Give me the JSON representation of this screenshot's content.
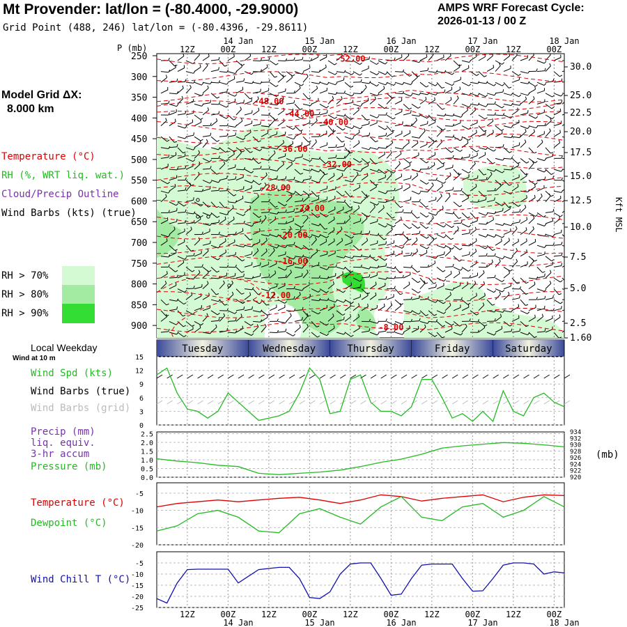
{
  "header": {
    "title": "Mt Provender:  lat/lon = (-80.4000, -29.9000)",
    "grid_point": "Grid Point (488, 246) lat/lon = (-80.4396, -29.8611)",
    "cycle_line1": "AMPS WRF Forecast Cycle:",
    "cycle_line2": "2026-01-13 / 00  Z"
  },
  "left_panel": {
    "model_grid_line1": "Model Grid ΔX:",
    "model_grid_line2": "8.000 km",
    "legend_temperature": "Temperature (°C)",
    "legend_rh": "RH (%, WRT liq. wat.)",
    "legend_cloud": "Cloud/Precip Outline",
    "legend_wind": "Wind Barbs (kts) (true)",
    "rh70": "RH > 70%",
    "rh80": "RH > 80%",
    "rh90": "RH > 90%",
    "local_weekday": "Local Weekday",
    "wind_at_10m": "Wind at 10 m",
    "wind_spd": "Wind Spd (kts)",
    "wind_barbs_true": "Wind Barbs (true)",
    "wind_barbs_grid": "Wind Barbs (grid)",
    "precip_line1": "Precip (mm)",
    "precip_line2": "liq. equiv.",
    "precip_line3": "3-hr accum",
    "pressure": "Pressure (mb)",
    "temperature": "Temperature (°C)",
    "dewpoint": "Dewpoint (°C)",
    "wind_chill": "Wind Chill T (°C)"
  },
  "colors": {
    "temperature": "#dd0000",
    "rh": "#22bb22",
    "cloud": "#7733aa",
    "windchill": "#1010b0",
    "rh70": "#d4fad4",
    "rh80": "#a3eaa3",
    "rh90": "#33dd33",
    "gray": "#bbbbbb"
  },
  "chart_data": [
    {
      "type": "contour",
      "name": "upper-air cross section",
      "pressure_label": "P (mb)",
      "pressure_ticks": [
        "250",
        "300",
        "350",
        "400",
        "450",
        "500",
        "550",
        "600",
        "650",
        "700",
        "750",
        "800",
        "850",
        "900"
      ],
      "height_label": "Kft MSL",
      "height_ticks": [
        "30.0",
        "25.0",
        "22.5",
        "20.0",
        "17.5",
        "15.0",
        "12.5",
        "10.0",
        "7.5",
        "5.0",
        "2.5",
        "1.60"
      ],
      "time_ticks_hour": [
        "12Z",
        "00Z",
        "12Z",
        "00Z",
        "12Z",
        "00Z",
        "12Z",
        "00Z",
        "12Z",
        "00Z"
      ],
      "time_ticks_date": [
        "14 Jan",
        "15 Jan",
        "16 Jan",
        "17 Jan",
        "18 Jan"
      ],
      "temperature_contour_labels": [
        {
          "value": "-52.00",
          "t": 57,
          "p": 258
        },
        {
          "value": "-48.00",
          "t": 33,
          "p": 360
        },
        {
          "value": "-44.00",
          "t": 42,
          "p": 390
        },
        {
          "value": "-40.00",
          "t": 52,
          "p": 410
        },
        {
          "value": "-36.00",
          "t": 40,
          "p": 475
        },
        {
          "value": "-32.00",
          "t": 53,
          "p": 512
        },
        {
          "value": "-28.00",
          "t": 35,
          "p": 568
        },
        {
          "value": "-24.00",
          "t": 45,
          "p": 618
        },
        {
          "value": "-20.00",
          "t": 40,
          "p": 682
        },
        {
          "value": "-16.00",
          "t": 40,
          "p": 745
        },
        {
          "value": "-12.00",
          "t": 35,
          "p": 828
        },
        {
          "value": "-8.00",
          "t": 69,
          "p": 905
        }
      ]
    },
    {
      "type": "line",
      "name": "wind speed",
      "y_ticks": [
        "15",
        "12",
        "9",
        "6",
        "3",
        "0"
      ],
      "ylim": [
        0,
        15
      ],
      "x_hours": [
        0,
        3,
        6,
        9,
        12,
        15,
        18,
        21,
        24,
        27,
        30,
        33,
        36,
        39,
        42,
        45,
        48,
        51,
        54,
        57,
        60,
        63,
        66,
        69,
        72,
        75,
        78,
        81,
        84,
        87,
        90,
        93,
        96,
        99,
        102,
        105,
        108,
        111,
        114,
        117,
        120
      ],
      "values": [
        11,
        12.5,
        7,
        3.5,
        3,
        1.5,
        3,
        7,
        5,
        3,
        1,
        1.5,
        2,
        3,
        7,
        12.5,
        10,
        2.5,
        3,
        10,
        11,
        5,
        3,
        3,
        2,
        4,
        10,
        10,
        6,
        1.5,
        2.5,
        0.8,
        3,
        0.8,
        7.5,
        3,
        2,
        6,
        7,
        5,
        4
      ]
    },
    {
      "type": "line",
      "name": "precip and pressure",
      "precip_ticks": [
        "2.5",
        "2.0",
        "1.5",
        "1.0",
        "0.5",
        "0.0"
      ],
      "pressure_ticks": [
        "934",
        "932",
        "930",
        "928",
        "926",
        "924",
        "922",
        "920"
      ],
      "pressure_unit": "(mb)",
      "pressure_range": [
        920,
        934
      ],
      "x_hours": [
        0,
        6,
        12,
        18,
        24,
        30,
        36,
        42,
        48,
        54,
        60,
        66,
        72,
        78,
        84,
        90,
        96,
        102,
        108,
        114,
        120
      ],
      "pressure": [
        925.7,
        925.0,
        924.5,
        923.7,
        923.3,
        921.2,
        920.8,
        921.2,
        921.6,
        922.2,
        923.3,
        924.6,
        925.6,
        927.1,
        929.0,
        929.7,
        930.2,
        930.7,
        930.5,
        930.0,
        929.4
      ],
      "precip": [
        0,
        0,
        0,
        0,
        0,
        0,
        0,
        0,
        0,
        0,
        0,
        0,
        0,
        0,
        0,
        0,
        0,
        0,
        0,
        0,
        0
      ]
    },
    {
      "type": "line",
      "name": "temperature and dewpoint",
      "y_ticks": [
        "-5",
        "-10",
        "-15",
        "-20"
      ],
      "ylim": [
        -20,
        -2
      ],
      "x_hours": [
        0,
        6,
        12,
        18,
        24,
        30,
        36,
        42,
        48,
        54,
        60,
        66,
        72,
        78,
        84,
        90,
        96,
        102,
        108,
        114,
        120
      ],
      "temperature": [
        -9,
        -8,
        -7.5,
        -7,
        -7.5,
        -7,
        -6.5,
        -6.2,
        -7,
        -8,
        -7,
        -5.5,
        -6,
        -7.3,
        -6.5,
        -6,
        -5.5,
        -7.5,
        -6.2,
        -5.5,
        -5.7
      ],
      "dewpoint": [
        -16,
        -14.5,
        -11,
        -10,
        -12,
        -16,
        -16.5,
        -11,
        -9.5,
        -12,
        -14,
        -9,
        -6,
        -12,
        -13,
        -9,
        -8,
        -12,
        -10,
        -6,
        -9
      ]
    },
    {
      "type": "line",
      "name": "wind chill",
      "y_ticks": [
        "-5",
        "-10",
        "-15",
        "-20",
        "-25"
      ],
      "ylim": [
        -25,
        0
      ],
      "x_hours": [
        0,
        3,
        6,
        9,
        12,
        15,
        18,
        21,
        24,
        27,
        30,
        33,
        36,
        39,
        42,
        45,
        48,
        51,
        54,
        57,
        60,
        63,
        66,
        69,
        72,
        75,
        78,
        81,
        84,
        87,
        90,
        93,
        96,
        99,
        102,
        105,
        108,
        111,
        114,
        117,
        120
      ],
      "values": [
        -21,
        -23,
        -14,
        -8,
        -7.8,
        -7.8,
        -7.8,
        -7.8,
        -14,
        -11,
        -8,
        -7.5,
        -7,
        -7,
        -12,
        -20.5,
        -21,
        -18,
        -10,
        -5.5,
        -5,
        -5,
        -12,
        -19.5,
        -19,
        -12,
        -6,
        -5.5,
        -5.5,
        -5.5,
        -12,
        -17.7,
        -17.5,
        -12,
        -6,
        -5,
        -5,
        -5.5,
        -10,
        -9,
        -9.5
      ]
    }
  ],
  "weekday_bar": [
    "Tuesday",
    "Wednesday",
    "Thursday",
    "Friday",
    "Saturday"
  ],
  "bottom_axis": {
    "hours": [
      "12Z",
      "00Z",
      "12Z",
      "00Z",
      "12Z",
      "00Z",
      "12Z",
      "00Z",
      "12Z",
      "00Z"
    ],
    "dates": [
      "14 Jan",
      "15 Jan",
      "16 Jan",
      "17 Jan",
      "18 Jan"
    ]
  }
}
